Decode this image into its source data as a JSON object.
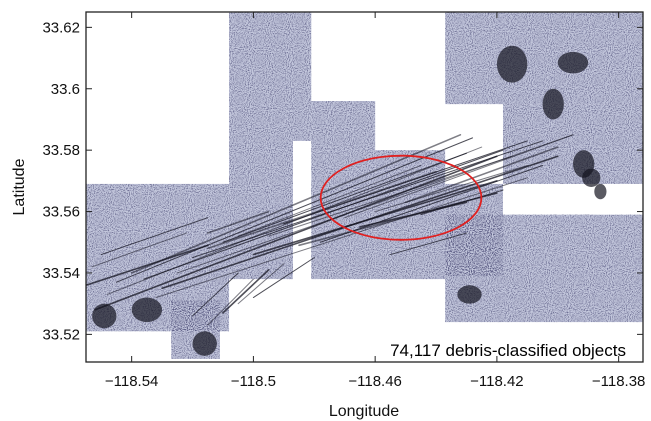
{
  "chart_data": {
    "type": "scatter",
    "title": "",
    "xlabel": "Longitude",
    "ylabel": "Latitude",
    "xlim": [
      -118.555,
      -118.372
    ],
    "ylim": [
      33.511,
      33.625
    ],
    "x_ticks": [
      -118.54,
      -118.5,
      -118.46,
      -118.42,
      -118.38
    ],
    "x_tick_labels": [
      "−118.54",
      "−118.5",
      "−118.46",
      "−118.42",
      "−118.38"
    ],
    "y_ticks": [
      33.52,
      33.54,
      33.56,
      33.58,
      33.6,
      33.62
    ],
    "y_tick_labels": [
      "33.52",
      "33.54",
      "33.56",
      "33.58",
      "33.6",
      "33.62"
    ],
    "grid": false,
    "annotation": "74,117 debris-classified objects",
    "highlight_ellipse": {
      "center_lon": -118.4515,
      "center_lat": 33.5645,
      "radius_lon": 0.0264,
      "radius_lat": 0.0137,
      "color": "#e02020"
    },
    "survey_tiles": [
      {
        "lon": [
          -118.555,
          -118.537
        ],
        "lat": [
          33.521,
          33.569
        ]
      },
      {
        "lon": [
          -118.537,
          -118.524
        ],
        "lat": [
          33.521,
          33.569
        ]
      },
      {
        "lon": [
          -118.524,
          -118.508
        ],
        "lat": [
          33.521,
          33.569
        ]
      },
      {
        "lon": [
          -118.527,
          -118.511
        ],
        "lat": [
          33.512,
          33.531
        ]
      },
      {
        "lon": [
          -118.508,
          -118.487
        ],
        "lat": [
          33.538,
          33.583
        ]
      },
      {
        "lon": [
          -118.508,
          -118.481
        ],
        "lat": [
          33.583,
          33.625
        ]
      },
      {
        "lon": [
          -118.481,
          -118.46
        ],
        "lat": [
          33.538,
          33.596
        ]
      },
      {
        "lon": [
          -118.46,
          -118.437
        ],
        "lat": [
          33.538,
          33.58
        ]
      },
      {
        "lon": [
          -118.437,
          -118.418
        ],
        "lat": [
          33.539,
          33.569
        ]
      },
      {
        "lon": [
          -118.437,
          -118.372
        ],
        "lat": [
          33.524,
          33.559
        ]
      },
      {
        "lon": [
          -118.418,
          -118.372
        ],
        "lat": [
          33.569,
          33.595
        ]
      },
      {
        "lon": [
          -118.437,
          -118.372
        ],
        "lat": [
          33.595,
          33.625
        ]
      }
    ],
    "tile_color": "#c4c8dd",
    "debris_color": "#141420",
    "debris_tracks": [
      {
        "lon": [
          -118.552,
          -118.42
        ],
        "lat": [
          33.528,
          33.578
        ]
      },
      {
        "lon": [
          -118.548,
          -118.425
        ],
        "lat": [
          33.533,
          33.581
        ]
      },
      {
        "lon": [
          -118.545,
          -118.428
        ],
        "lat": [
          33.537,
          33.584
        ]
      },
      {
        "lon": [
          -118.54,
          -118.432
        ],
        "lat": [
          33.54,
          33.585
        ]
      },
      {
        "lon": [
          -118.536,
          -118.418
        ],
        "lat": [
          33.538,
          33.58
        ]
      },
      {
        "lon": [
          -118.532,
          -118.41
        ],
        "lat": [
          33.532,
          33.571
        ]
      },
      {
        "lon": [
          -118.53,
          -118.4
        ],
        "lat": [
          33.535,
          33.578
        ]
      },
      {
        "lon": [
          -118.525,
          -118.395
        ],
        "lat": [
          33.54,
          33.585
        ]
      },
      {
        "lon": [
          -118.52,
          -118.405
        ],
        "lat": [
          33.545,
          33.583
        ]
      },
      {
        "lon": [
          -118.515,
          -118.44
        ],
        "lat": [
          33.548,
          33.573
        ]
      },
      {
        "lon": [
          -118.51,
          -118.43
        ],
        "lat": [
          33.55,
          33.579
        ]
      },
      {
        "lon": [
          -118.505,
          -118.445
        ],
        "lat": [
          33.552,
          33.575
        ]
      },
      {
        "lon": [
          -118.5,
          -118.42
        ],
        "lat": [
          33.546,
          33.57
        ]
      },
      {
        "lon": [
          -118.495,
          -118.415
        ],
        "lat": [
          33.552,
          33.578
        ]
      },
      {
        "lon": [
          -118.49,
          -118.41
        ],
        "lat": [
          33.556,
          33.583
        ]
      },
      {
        "lon": [
          -118.485,
          -118.42
        ],
        "lat": [
          33.549,
          33.566
        ]
      },
      {
        "lon": [
          -118.478,
          -118.405
        ],
        "lat": [
          33.55,
          33.575
        ]
      },
      {
        "lon": [
          -118.47,
          -118.395
        ],
        "lat": [
          33.558,
          33.585
        ]
      },
      {
        "lon": [
          -118.465,
          -118.43
        ],
        "lat": [
          33.555,
          33.563
        ]
      },
      {
        "lon": [
          -118.46,
          -118.41
        ],
        "lat": [
          33.56,
          33.575
        ]
      },
      {
        "lon": [
          -118.455,
          -118.43
        ],
        "lat": [
          33.546,
          33.553
        ]
      },
      {
        "lon": [
          -118.45,
          -118.4
        ],
        "lat": [
          33.563,
          33.581
        ]
      },
      {
        "lon": [
          -118.445,
          -118.418
        ],
        "lat": [
          33.559,
          33.567
        ]
      },
      {
        "lon": [
          -118.44,
          -118.42
        ],
        "lat": [
          33.561,
          33.566
        ]
      },
      {
        "lon": [
          -118.555,
          -118.515
        ],
        "lat": [
          33.536,
          33.549
        ]
      },
      {
        "lon": [
          -118.553,
          -118.522
        ],
        "lat": [
          33.542,
          33.553
        ]
      },
      {
        "lon": [
          -118.55,
          -118.515
        ],
        "lat": [
          33.546,
          33.558
        ]
      },
      {
        "lon": [
          -118.515,
          -118.495
        ],
        "lat": [
          33.553,
          33.56
        ]
      },
      {
        "lon": [
          -118.52,
          -118.505
        ],
        "lat": [
          33.526,
          33.54
        ]
      },
      {
        "lon": [
          -118.515,
          -118.5
        ],
        "lat": [
          33.523,
          33.538
        ]
      },
      {
        "lon": [
          -118.51,
          -118.495
        ],
        "lat": [
          33.527,
          33.541
        ]
      },
      {
        "lon": [
          -118.505,
          -118.49
        ],
        "lat": [
          33.53,
          33.543
        ]
      },
      {
        "lon": [
          -118.5,
          -118.48
        ],
        "lat": [
          33.532,
          33.545
        ]
      }
    ],
    "debris_patches": [
      {
        "lon": [
          -118.395,
          -118.388
        ],
        "lat": [
          33.571,
          33.58
        ]
      },
      {
        "lon": [
          -118.392,
          -118.386
        ],
        "lat": [
          33.568,
          33.574
        ]
      },
      {
        "lon": [
          -118.388,
          -118.384
        ],
        "lat": [
          33.564,
          33.569
        ]
      },
      {
        "lon": [
          -118.42,
          -118.41
        ],
        "lat": [
          33.602,
          33.614
        ]
      },
      {
        "lon": [
          -118.405,
          -118.398
        ],
        "lat": [
          33.59,
          33.6
        ]
      },
      {
        "lon": [
          -118.553,
          -118.545
        ],
        "lat": [
          33.522,
          33.53
        ]
      },
      {
        "lon": [
          -118.54,
          -118.53
        ],
        "lat": [
          33.524,
          33.532
        ]
      },
      {
        "lon": [
          -118.52,
          -118.512
        ],
        "lat": [
          33.513,
          33.521
        ]
      },
      {
        "lon": [
          -118.4,
          -118.39
        ],
        "lat": [
          33.605,
          33.612
        ]
      },
      {
        "lon": [
          -118.433,
          -118.425
        ],
        "lat": [
          33.53,
          33.536
        ]
      }
    ]
  }
}
